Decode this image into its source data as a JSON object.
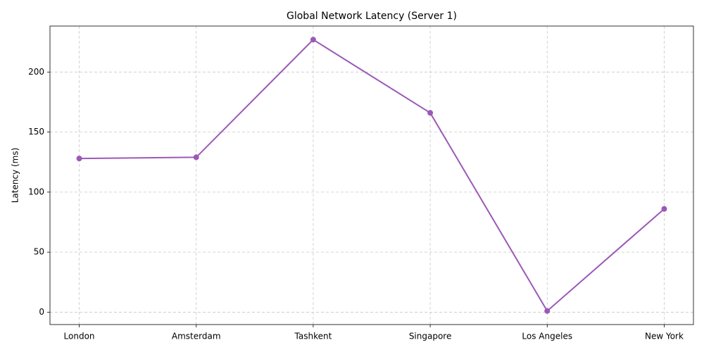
{
  "chart_data": {
    "type": "line",
    "title": "Global Network Latency (Server 1)",
    "y_label": "Latency (ms)",
    "categories": [
      "London",
      "Amsterdam",
      "Tashkent",
      "Singapore",
      "Los Angeles",
      "New York"
    ],
    "series": [
      {
        "name": "Server 1",
        "color": "#9b59b6",
        "values": [
          128,
          129,
          227,
          166,
          1,
          86
        ]
      }
    ],
    "ylim": [
      -10.3,
      238.3
    ],
    "yticks": [
      0,
      50,
      100,
      150,
      200
    ],
    "grid": true
  }
}
